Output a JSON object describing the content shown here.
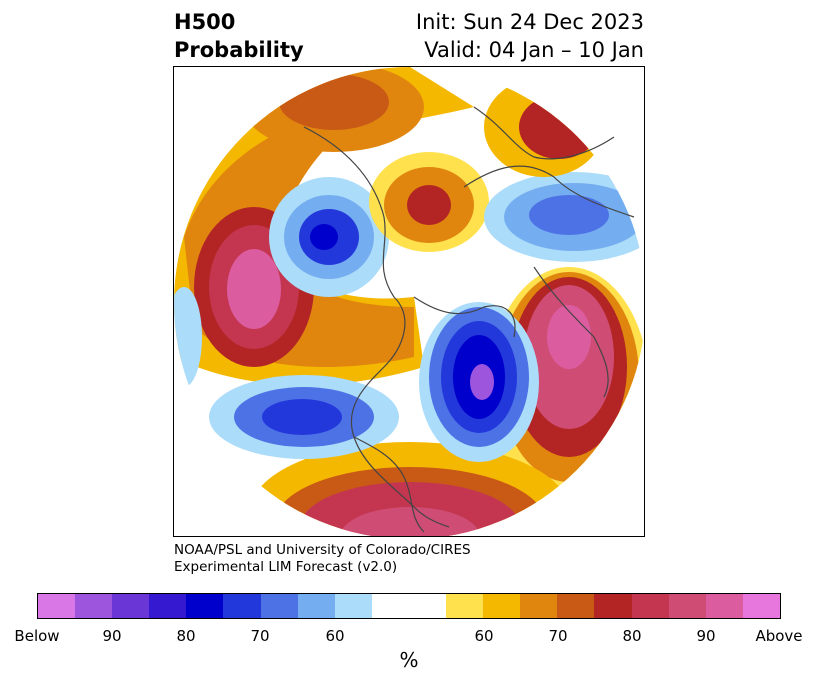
{
  "header": {
    "title_line1": "H500",
    "title_line2": "Probability",
    "init_text": "Init: Sun 24 Dec 2023",
    "valid_text": "Valid: 04 Jan – 10 Jan"
  },
  "credit": {
    "line1": "NOAA/PSL and University of Colorado/CIRES",
    "line2": "Experimental LIM Forecast (v2.0)"
  },
  "colorbar": {
    "unit": "%",
    "colors": [
      "#d977e6",
      "#9d55dd",
      "#6a37d6",
      "#3419d1",
      "#0000cc",
      "#2338db",
      "#4d72e6",
      "#75aef0",
      "#abdcfa",
      "#ffffff",
      "#ffffff",
      "#ffe14d",
      "#f5b800",
      "#e0860f",
      "#c95a15",
      "#b32424",
      "#c43650",
      "#cf4d75",
      "#db5c9f",
      "#e877dd"
    ],
    "ticks": [
      "Below",
      "90",
      "80",
      "70",
      "60",
      "60",
      "70",
      "80",
      "90",
      "Above"
    ]
  },
  "map": {
    "projection": "polar stereographic (north pole)",
    "palette": {
      "above_light": "#ffe14d",
      "above_1": "#f5b800",
      "above_2": "#e0860f",
      "above_3": "#c95a15",
      "above_4": "#b32424",
      "above_5": "#c43650",
      "above_6": "#cf4d75",
      "above_7": "#db5c9f",
      "below_light": "#abdcfa",
      "below_1": "#75aef0",
      "below_2": "#4d72e6",
      "below_3": "#2338db",
      "below_4": "#0000cc",
      "below_5": "#9d55dd"
    }
  }
}
